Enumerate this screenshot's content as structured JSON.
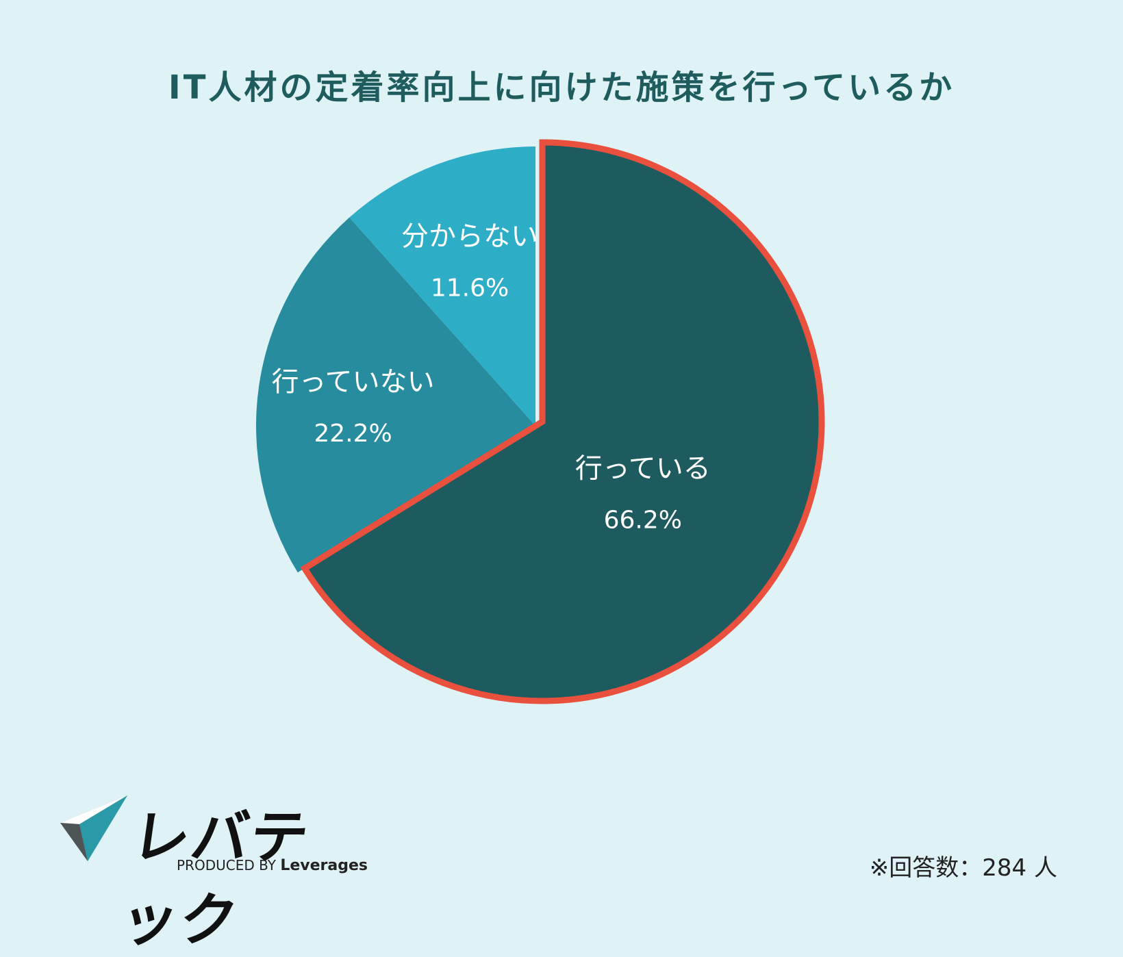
{
  "title": "IT人材の定着率向上に向けた施策を行っているか",
  "chart_data": {
    "type": "pie",
    "title": "IT人材の定着率向上に向けた施策を行っているか",
    "unit": "%",
    "slices": [
      {
        "label": "行っている",
        "value": 66.2,
        "value_label": "66.2%",
        "color": "#1e5b5f",
        "highlighted": true
      },
      {
        "label": "行っていない",
        "value": 22.2,
        "value_label": "22.2%",
        "color": "#268c9e",
        "highlighted": false
      },
      {
        "label": "分からない",
        "value": 11.6,
        "value_label": "11.6%",
        "color": "#2eaec6",
        "highlighted": false
      }
    ],
    "start": "12 o'clock",
    "direction": "clockwise",
    "highlight_color": "#e9503d"
  },
  "logo": {
    "name": "レバテック",
    "tagline_prefix": "PRODUCED BY",
    "tagline_brand": "Leverages"
  },
  "respondents": "※回答数：284 人"
}
